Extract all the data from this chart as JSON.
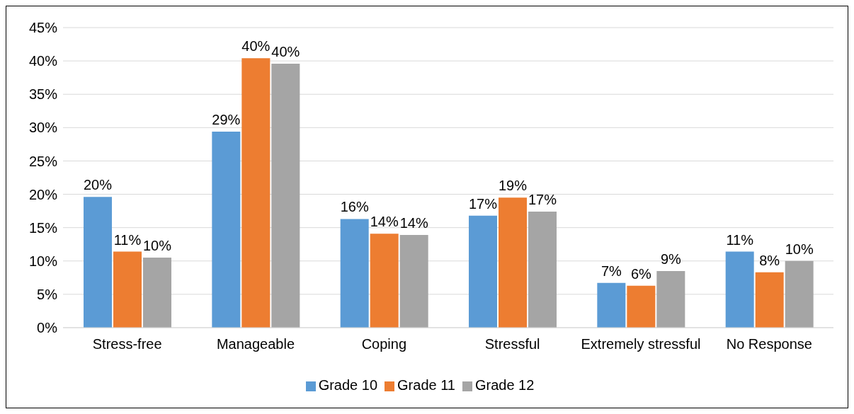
{
  "chart_data": {
    "type": "bar",
    "categories": [
      "Stress-free",
      "Manageable",
      "Coping",
      "Stressful",
      "Extremely stressful",
      "No Response"
    ],
    "series": [
      {
        "name": "Grade 10",
        "color": "#5b9bd5",
        "values": [
          19.6,
          29.4,
          16.3,
          16.8,
          6.7,
          11.4
        ],
        "value_labels": [
          "20%",
          "29%",
          "16%",
          "17%",
          "7%",
          "11%"
        ]
      },
      {
        "name": "Grade 11",
        "color": "#ed7d31",
        "values": [
          11.4,
          40.4,
          14.1,
          19.5,
          6.3,
          8.3
        ],
        "value_labels": [
          "11%",
          "40%",
          "14%",
          "19%",
          "6%",
          "8%"
        ]
      },
      {
        "name": "Grade 12",
        "color": "#a5a5a5",
        "values": [
          10.5,
          39.6,
          13.9,
          17.4,
          8.5,
          10.0
        ],
        "value_labels": [
          "10%",
          "40%",
          "14%",
          "17%",
          "9%",
          "10%"
        ]
      }
    ],
    "ylim": [
      0,
      45
    ],
    "yticks": [
      {
        "value": 0,
        "label": "0%"
      },
      {
        "value": 5,
        "label": "5%"
      },
      {
        "value": 10,
        "label": "10%"
      },
      {
        "value": 15,
        "label": "15%"
      },
      {
        "value": 20,
        "label": "20%"
      },
      {
        "value": 25,
        "label": "25%"
      },
      {
        "value": 30,
        "label": "30%"
      },
      {
        "value": 35,
        "label": "35%"
      },
      {
        "value": 40,
        "label": "40%"
      },
      {
        "value": 45,
        "label": "45%"
      }
    ],
    "grid": "y",
    "legend": "bottom"
  }
}
